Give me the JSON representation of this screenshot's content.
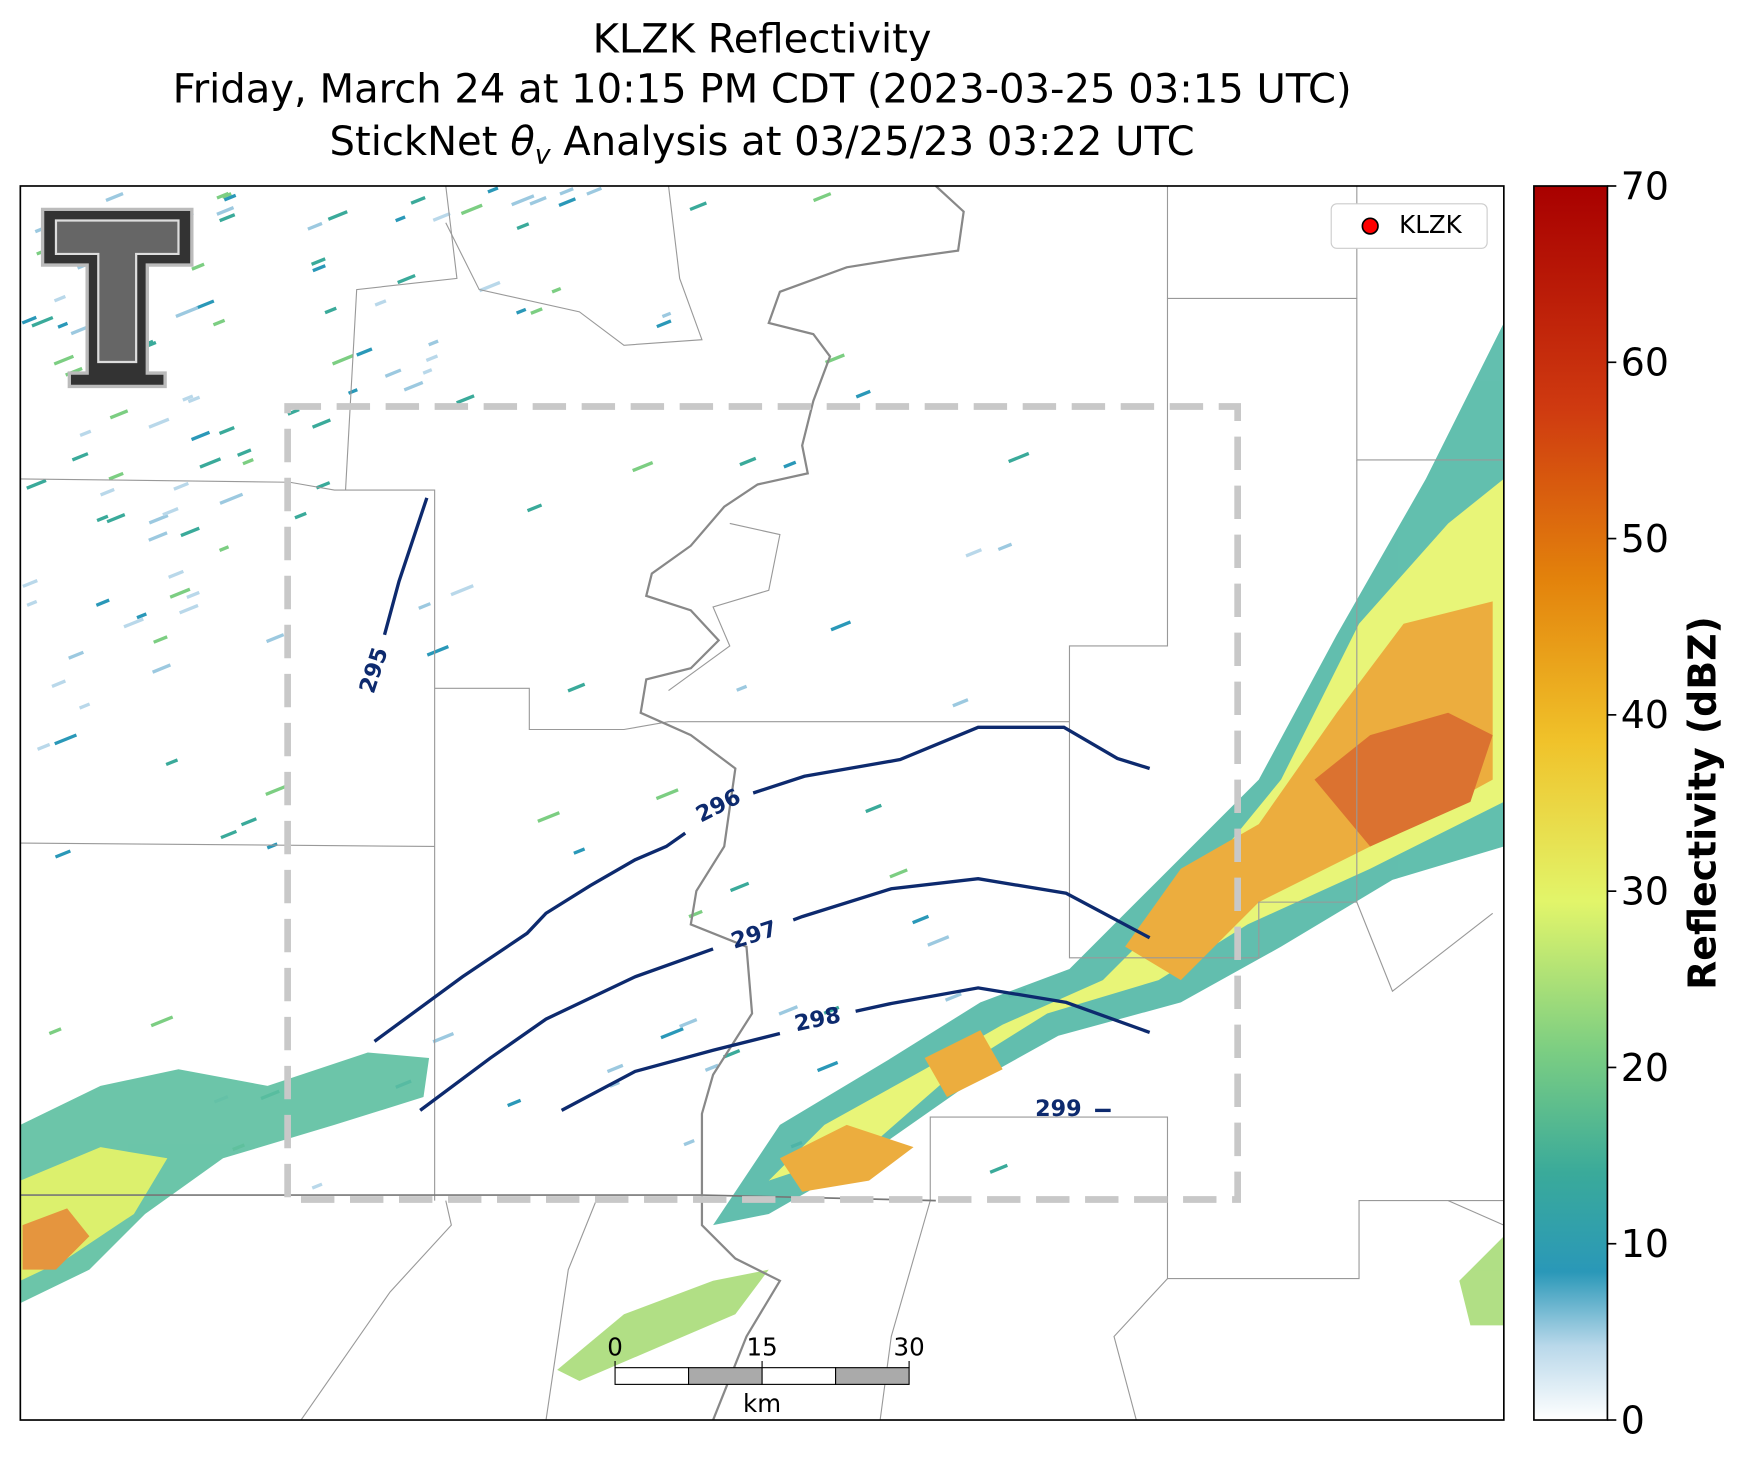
{
  "title": {
    "line1": "KLZK Reflectivity",
    "line2": "Friday, March 24 at 10:15 PM CDT (2023-03-25 03:15 UTC)",
    "line3_prefix": "StickNet",
    "line3_symbol": "θ",
    "line3_subscript": "v",
    "line3_suffix": "Analysis at 03/25/23 03:22 UTC"
  },
  "legend": {
    "label": "KLZK",
    "color": "#ff0000"
  },
  "colorbar": {
    "label": "Reflectivity (dBZ)",
    "lim": [
      0,
      70
    ],
    "ticks": [
      0,
      10,
      20,
      30,
      40,
      50,
      60,
      70
    ]
  },
  "contours": {
    "color": "#0d2a6e",
    "labels": [
      295,
      296,
      297,
      298,
      299
    ]
  },
  "scale_bar": {
    "ticks": [
      0,
      15,
      30
    ],
    "unit": "km"
  }
}
